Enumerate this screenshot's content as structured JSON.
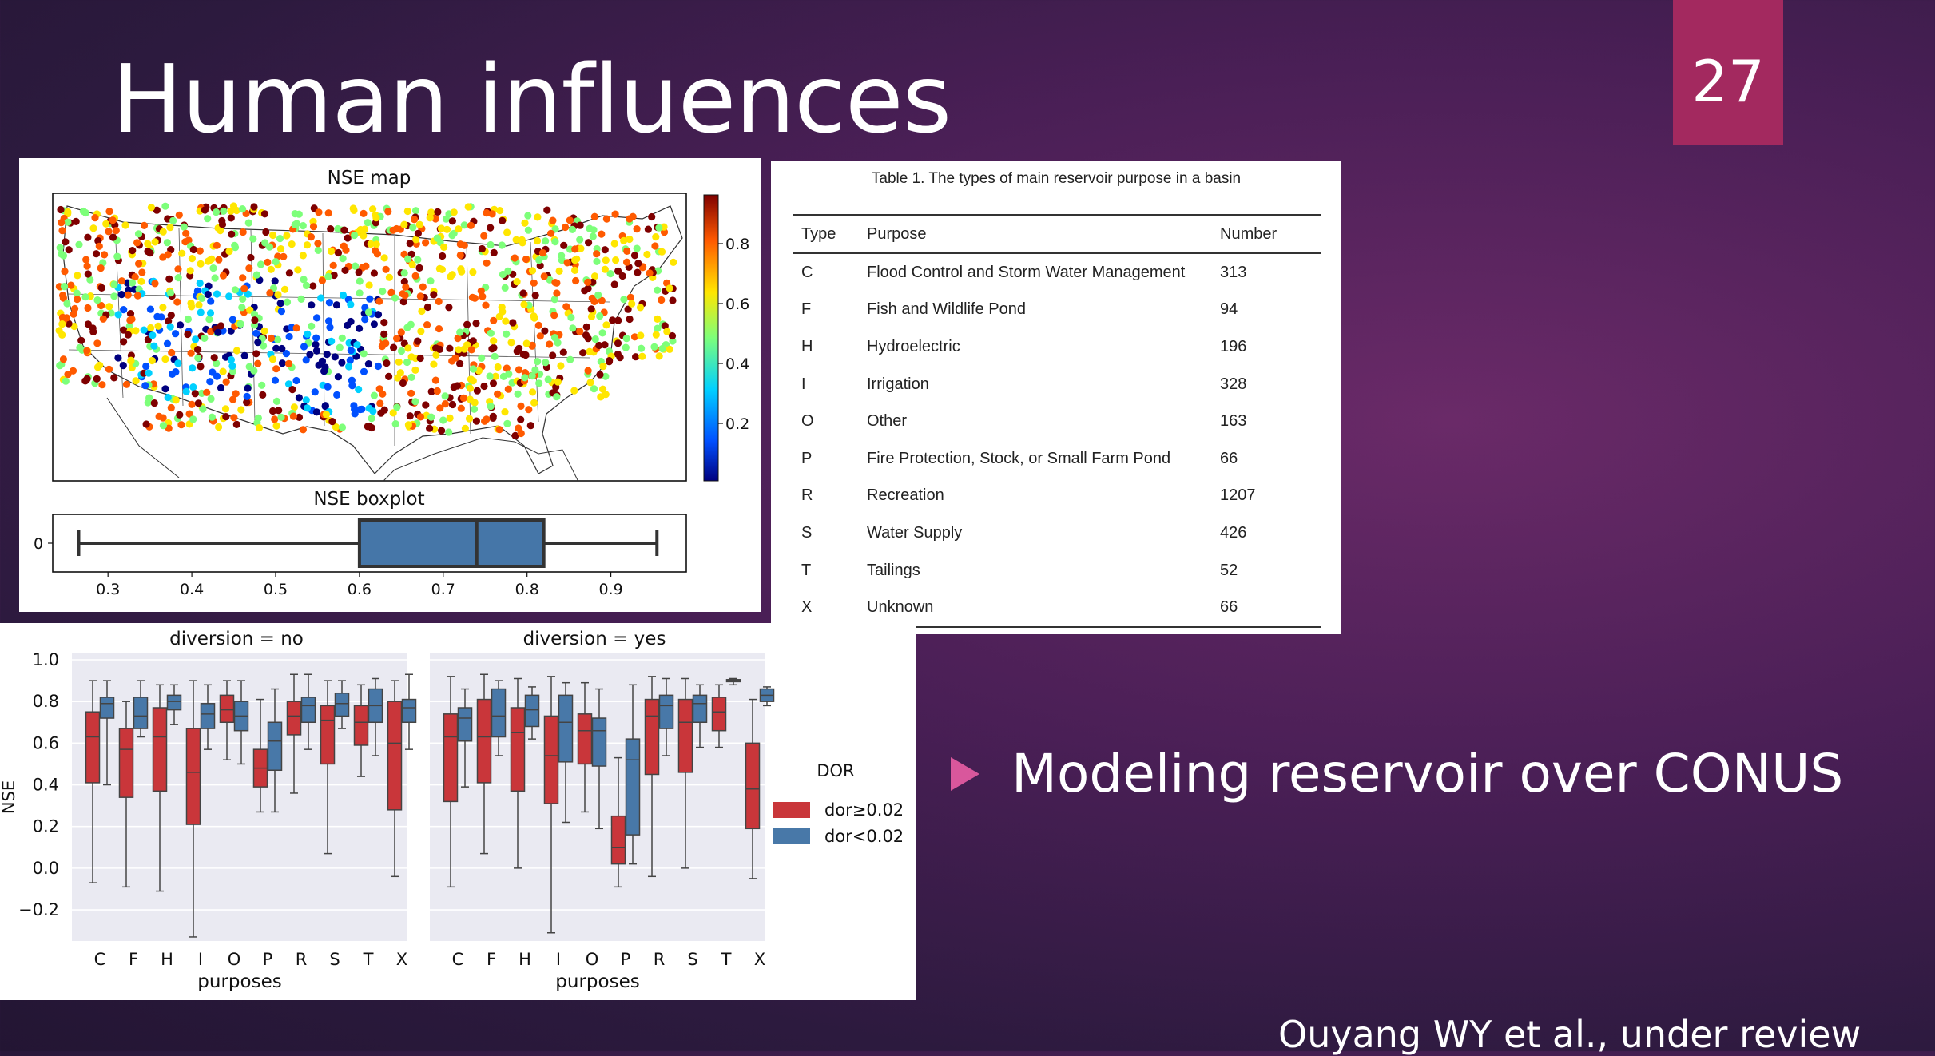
{
  "slide": {
    "title": "Human influences",
    "page_number": "27",
    "bullet": "Modeling reservoir over CONUS",
    "citation": "Ouyang WY et al., under review"
  },
  "map": {
    "title": "NSE map",
    "colorbar_ticks": [
      "0.8",
      "0.6",
      "0.4",
      "0.2"
    ],
    "colorbar_colors": [
      "#00007f",
      "#0050ff",
      "#00d0ff",
      "#7dff7a",
      "#ffe600",
      "#ff5a00",
      "#7f0000"
    ]
  },
  "nse_boxplot": {
    "title": "NSE boxplot",
    "ytick": "0",
    "xticks": [
      "0.3",
      "0.4",
      "0.5",
      "0.6",
      "0.7",
      "0.8",
      "0.9"
    ],
    "whisker_low": 0.265,
    "q1": 0.6,
    "median": 0.74,
    "q3": 0.82,
    "whisker_high": 0.955,
    "box_color": "#4576a8"
  },
  "table": {
    "caption": "Table 1. The types of main reservoir purpose in a basin",
    "headers": [
      "Type",
      "Purpose",
      "Number"
    ],
    "rows": [
      [
        "C",
        "Flood Control and Storm Water Management",
        "313"
      ],
      [
        "F",
        "Fish and Wildlife Pond",
        "94"
      ],
      [
        "H",
        "Hydroelectric",
        "196"
      ],
      [
        "I",
        "Irrigation",
        "328"
      ],
      [
        "O",
        "Other",
        "163"
      ],
      [
        "P",
        "Fire Protection, Stock, or Small Farm Pond",
        "66"
      ],
      [
        "R",
        "Recreation",
        "1207"
      ],
      [
        "S",
        "Water Supply",
        "426"
      ],
      [
        "T",
        "Tailings",
        "52"
      ],
      [
        "X",
        "Unknown",
        "66"
      ]
    ]
  },
  "chart_data": {
    "type": "boxplot",
    "ylabel": "NSE",
    "xlabel": "purposes",
    "yticks": [
      "1.0",
      "0.8",
      "0.6",
      "0.4",
      "0.2",
      "0.0",
      "−0.2"
    ],
    "ylim": [
      -0.38,
      1.0
    ],
    "categories": [
      "C",
      "F",
      "H",
      "I",
      "O",
      "P",
      "R",
      "S",
      "T",
      "X"
    ],
    "legend": {
      "title": "DOR",
      "items": [
        "dor≥0.02",
        "dor<0.02"
      ]
    },
    "colors": {
      "dor≥0.02": "#c9363a",
      "dor<0.02": "#4878a8"
    },
    "panels": [
      {
        "title": "diversion = no",
        "series": [
          {
            "name": "dor≥0.02",
            "boxes": [
              [
                -0.07,
                0.41,
                0.63,
                0.75,
                0.9
              ],
              [
                -0.09,
                0.34,
                0.57,
                0.67,
                0.8
              ],
              [
                -0.11,
                0.37,
                0.63,
                0.77,
                0.88
              ],
              [
                -0.33,
                0.21,
                0.46,
                0.67,
                0.9
              ],
              [
                0.52,
                0.7,
                0.76,
                0.83,
                0.9
              ],
              [
                0.27,
                0.39,
                0.48,
                0.57,
                0.81
              ],
              [
                0.36,
                0.64,
                0.73,
                0.8,
                0.93
              ],
              [
                0.07,
                0.5,
                0.71,
                0.78,
                0.9
              ],
              [
                0.44,
                0.59,
                0.7,
                0.78,
                0.88
              ],
              [
                -0.04,
                0.28,
                0.6,
                0.8,
                0.9
              ]
            ]
          },
          {
            "name": "dor<0.02",
            "boxes": [
              [
                0.4,
                0.72,
                0.79,
                0.82,
                0.9
              ],
              [
                0.63,
                0.67,
                0.73,
                0.82,
                0.9
              ],
              [
                0.69,
                0.76,
                0.8,
                0.83,
                0.88
              ],
              [
                0.57,
                0.67,
                0.74,
                0.79,
                0.88
              ],
              [
                0.5,
                0.66,
                0.73,
                0.8,
                0.9
              ],
              [
                0.27,
                0.47,
                0.61,
                0.7,
                0.86
              ],
              [
                0.57,
                0.7,
                0.78,
                0.82,
                0.93
              ],
              [
                0.67,
                0.73,
                0.79,
                0.84,
                0.9
              ],
              [
                0.54,
                0.7,
                0.78,
                0.86,
                0.91
              ],
              [
                0.57,
                0.7,
                0.77,
                0.81,
                0.93
              ]
            ]
          }
        ]
      },
      {
        "title": "diversion = yes",
        "series": [
          {
            "name": "dor≥0.02",
            "boxes": [
              [
                -0.09,
                0.32,
                0.63,
                0.74,
                0.92
              ],
              [
                0.07,
                0.41,
                0.63,
                0.81,
                0.93
              ],
              [
                0.0,
                0.37,
                0.65,
                0.77,
                0.91
              ],
              [
                -0.31,
                0.31,
                0.54,
                0.73,
                0.92
              ],
              [
                0.27,
                0.5,
                0.66,
                0.74,
                0.89
              ],
              [
                -0.09,
                0.02,
                0.1,
                0.25,
                0.53
              ],
              [
                -0.04,
                0.45,
                0.73,
                0.81,
                0.92
              ],
              [
                0.0,
                0.46,
                0.7,
                0.81,
                0.91
              ],
              [
                0.58,
                0.66,
                0.75,
                0.82,
                0.88
              ],
              [
                -0.05,
                0.19,
                0.38,
                0.6,
                0.81
              ]
            ]
          },
          {
            "name": "dor<0.02",
            "boxes": [
              [
                0.39,
                0.61,
                0.72,
                0.77,
                0.86
              ],
              [
                0.54,
                0.63,
                0.73,
                0.86,
                0.9
              ],
              [
                0.62,
                0.68,
                0.76,
                0.83,
                0.87
              ],
              [
                0.22,
                0.51,
                0.7,
                0.83,
                0.89
              ],
              [
                0.19,
                0.49,
                0.66,
                0.72,
                0.86
              ],
              [
                0.02,
                0.16,
                0.52,
                0.62,
                0.88
              ],
              [
                0.54,
                0.67,
                0.78,
                0.83,
                0.91
              ],
              [
                0.58,
                0.7,
                0.79,
                0.83,
                0.88
              ],
              [
                0.88,
                0.895,
                0.9,
                0.905,
                0.91
              ],
              [
                0.78,
                0.8,
                0.83,
                0.86,
                0.87
              ]
            ]
          }
        ]
      }
    ]
  }
}
